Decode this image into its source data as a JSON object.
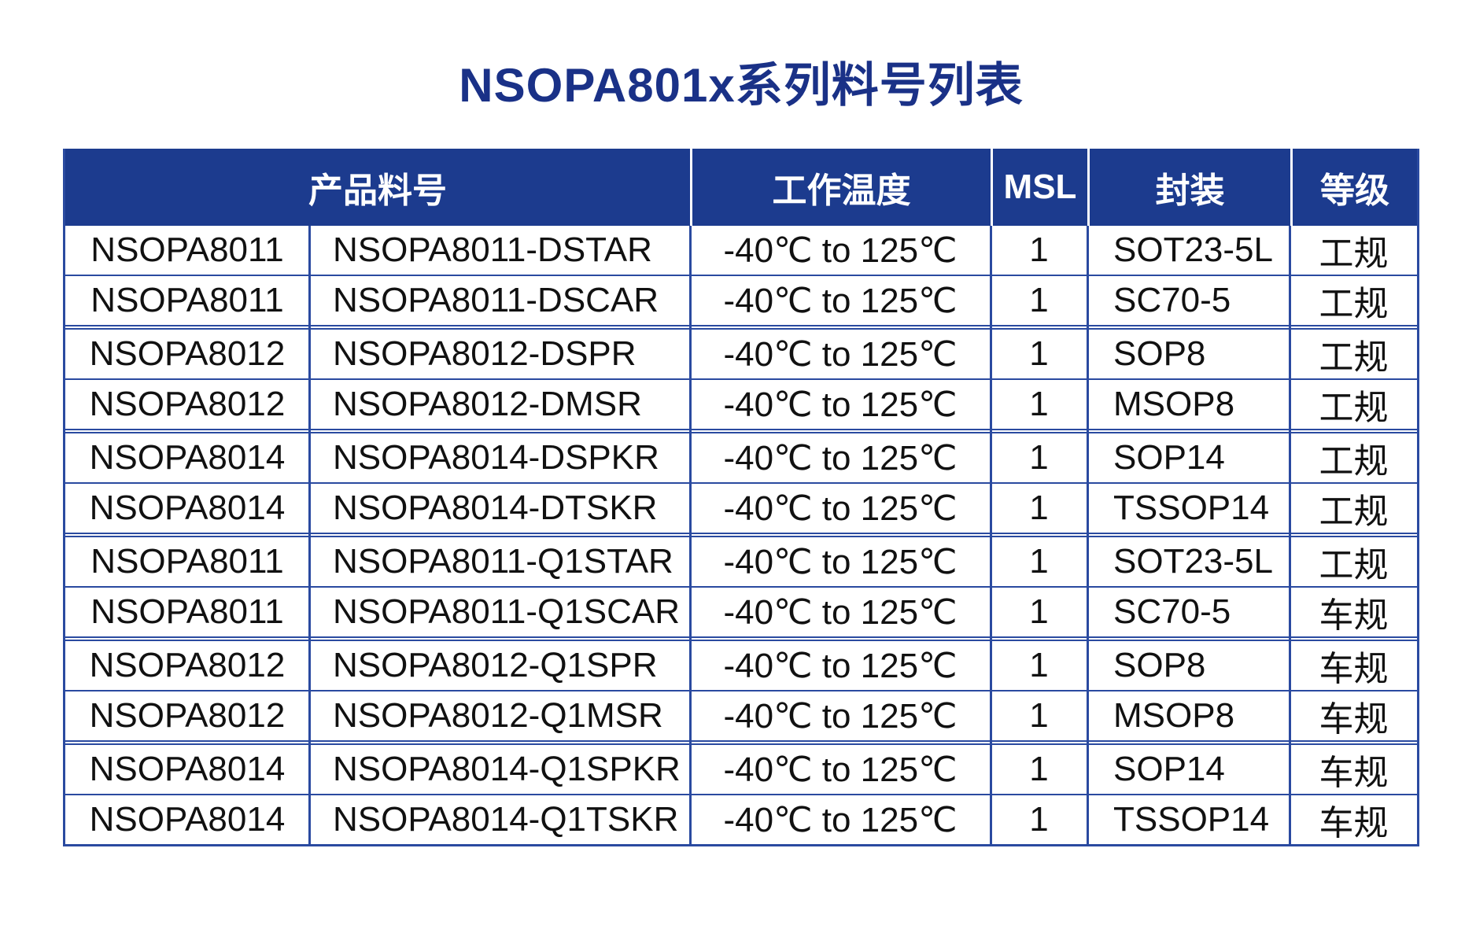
{
  "page_title": "NSOPA801x系列料号列表",
  "colors": {
    "header_background": "#1c3b8e",
    "table_border": "#2a4aa0",
    "title_text": "#1a3187",
    "cell_text": "#111111",
    "header_text": "#ffffff"
  },
  "chart_data": {
    "type": "table",
    "title": "NSOPA801x系列料号列表",
    "headers": {
      "product": "产品料号",
      "temperature": "工作温度",
      "msl": "MSL",
      "package": "封装",
      "grade": "等级"
    },
    "header_layout": "产品料号 header cell spans the first two body columns",
    "row_group_size": 2,
    "row_groups_note": "double rule between every group of 2 rows",
    "rows": [
      [
        "NSOPA8011",
        "NSOPA8011-DSTAR",
        "-40℃ to 125℃",
        "1",
        "SOT23-5L",
        "工规"
      ],
      [
        "NSOPA8011",
        "NSOPA8011-DSCAR",
        "-40℃ to 125℃",
        "1",
        "SC70-5",
        "工规"
      ],
      [
        "NSOPA8012",
        "NSOPA8012-DSPR",
        "-40℃ to 125℃",
        "1",
        "SOP8",
        "工规"
      ],
      [
        "NSOPA8012",
        "NSOPA8012-DMSR",
        "-40℃ to 125℃",
        "1",
        "MSOP8",
        "工规"
      ],
      [
        "NSOPA8014",
        "NSOPA8014-DSPKR",
        "-40℃ to 125℃",
        "1",
        "SOP14",
        "工规"
      ],
      [
        "NSOPA8014",
        "NSOPA8014-DTSKR",
        "-40℃ to 125℃",
        "1",
        "TSSOP14",
        "工规"
      ],
      [
        "NSOPA8011",
        "NSOPA8011-Q1STAR",
        "-40℃ to 125℃",
        "1",
        "SOT23-5L",
        "工规"
      ],
      [
        "NSOPA8011",
        "NSOPA8011-Q1SCAR",
        "-40℃ to 125℃",
        "1",
        "SC70-5",
        "车规"
      ],
      [
        "NSOPA8012",
        "NSOPA8012-Q1SPR",
        "-40℃ to 125℃",
        "1",
        "SOP8",
        "车规"
      ],
      [
        "NSOPA8012",
        "NSOPA8012-Q1MSR",
        "-40℃ to 125℃",
        "1",
        "MSOP8",
        "车规"
      ],
      [
        "NSOPA8014",
        "NSOPA8014-Q1SPKR",
        "-40℃ to 125℃",
        "1",
        "SOP14",
        "车规"
      ],
      [
        "NSOPA8014",
        "NSOPA8014-Q1TSKR",
        "-40℃ to 125℃",
        "1",
        "TSSOP14",
        "车规"
      ]
    ]
  }
}
